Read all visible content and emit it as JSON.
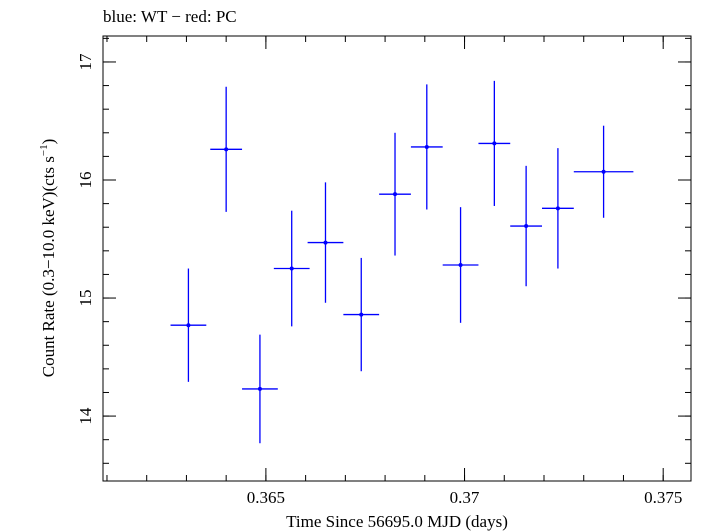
{
  "chart_data": {
    "type": "scatter",
    "title": "blue: WT − red: PC",
    "xlabel": "Time Since 56695.0 MJD (days)",
    "ylabel_main": "Count Rate (0.3−10.0 keV)(cts s",
    "ylabel_sup": "−1",
    "ylabel_tail": ")",
    "xlim": [
      0.3609,
      0.3757
    ],
    "ylim": [
      13.45,
      17.22
    ],
    "xticks": [
      {
        "value": 0.365,
        "label": "0.365"
      },
      {
        "value": 0.37,
        "label": "0.37"
      },
      {
        "value": 0.375,
        "label": "0.375"
      }
    ],
    "yticks": [
      {
        "value": 14,
        "label": "14"
      },
      {
        "value": 15,
        "label": "15"
      },
      {
        "value": 16,
        "label": "16"
      },
      {
        "value": 17,
        "label": "17"
      }
    ],
    "x_minor_step": 0.001,
    "y_minor_step": 0.2,
    "grid": false,
    "series": [
      {
        "color": "#0000ff",
        "points": [
          {
            "x": 0.36305,
            "xerr": 0.00045,
            "y": 14.77,
            "yerr": 0.48
          },
          {
            "x": 0.364,
            "xerr": 0.0004,
            "y": 16.26,
            "yerr": 0.53
          },
          {
            "x": 0.36485,
            "xerr": 0.00045,
            "y": 14.23,
            "yerr": 0.46
          },
          {
            "x": 0.36565,
            "xerr": 0.00045,
            "y": 15.25,
            "yerr": 0.49
          },
          {
            "x": 0.3665,
            "xerr": 0.00045,
            "y": 15.47,
            "yerr": 0.51
          },
          {
            "x": 0.3674,
            "xerr": 0.00045,
            "y": 14.86,
            "yerr": 0.48
          },
          {
            "x": 0.36825,
            "xerr": 0.0004,
            "y": 15.88,
            "yerr": 0.52
          },
          {
            "x": 0.36905,
            "xerr": 0.0004,
            "y": 16.28,
            "yerr": 0.53
          },
          {
            "x": 0.3699,
            "xerr": 0.00045,
            "y": 15.28,
            "yerr": 0.49
          },
          {
            "x": 0.37075,
            "xerr": 0.0004,
            "y": 16.31,
            "yerr": 0.53
          },
          {
            "x": 0.37155,
            "xerr": 0.0004,
            "y": 15.61,
            "yerr": 0.51
          },
          {
            "x": 0.37235,
            "xerr": 0.0004,
            "y": 15.76,
            "yerr": 0.51
          },
          {
            "x": 0.3735,
            "xerr": 0.00075,
            "y": 16.07,
            "yerr": 0.39
          }
        ]
      }
    ]
  }
}
